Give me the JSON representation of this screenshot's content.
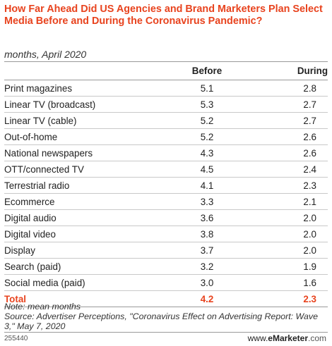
{
  "chart_data": {
    "type": "table",
    "title": "How Far Ahead Did US Agencies and Brand Marketers Plan Select Media Before and During the Coronavirus Pandemic?",
    "subtitle": "months, April 2020",
    "columns": [
      "",
      "Before",
      "During"
    ],
    "rows": [
      {
        "label": "Print magazines",
        "before": "5.1",
        "during": "2.8"
      },
      {
        "label": "Linear TV (broadcast)",
        "before": "5.3",
        "during": "2.7"
      },
      {
        "label": "Linear TV (cable)",
        "before": "5.2",
        "during": "2.7"
      },
      {
        "label": "Out-of-home",
        "before": "5.2",
        "during": "2.6"
      },
      {
        "label": "National newspapers",
        "before": "4.3",
        "during": "2.6"
      },
      {
        "label": "OTT/connected TV",
        "before": "4.5",
        "during": "2.4"
      },
      {
        "label": "Terrestrial radio",
        "before": "4.1",
        "during": "2.3"
      },
      {
        "label": "Ecommerce",
        "before": "3.3",
        "during": "2.1"
      },
      {
        "label": "Digital audio",
        "before": "3.6",
        "during": "2.0"
      },
      {
        "label": "Digital video",
        "before": "3.8",
        "during": "2.0"
      },
      {
        "label": "Display",
        "before": "3.7",
        "during": "2.0"
      },
      {
        "label": "Search (paid)",
        "before": "3.2",
        "during": "1.9"
      },
      {
        "label": "Social media (paid)",
        "before": "3.0",
        "during": "1.6"
      }
    ],
    "total": {
      "label": "Total",
      "before": "4.2",
      "during": "2.3"
    },
    "note": "Note: mean months",
    "source": "Source: Advertiser Perceptions, \"Coronavirus Effect on Advertising Report: Wave 3,\" May 7, 2020",
    "chart_id": "255440",
    "brand_prefix": "www.",
    "brand_name": "eMarketer",
    "brand_suffix": ".com",
    "colors": {
      "accent": "#e8431e",
      "text": "#222222",
      "rule": "#c9c9c9"
    }
  }
}
